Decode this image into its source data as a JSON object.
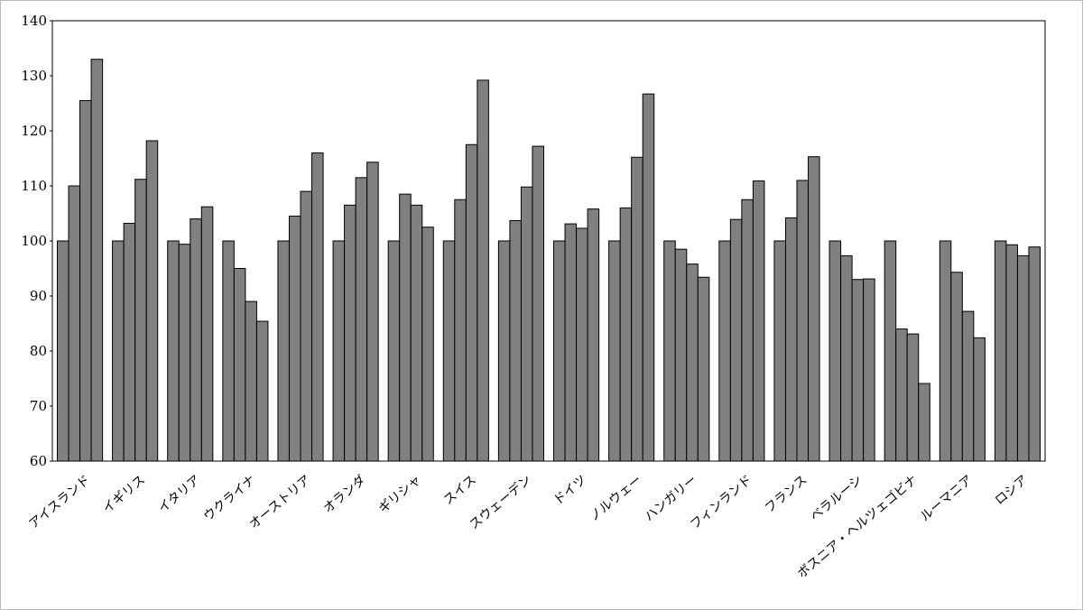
{
  "chart_data": {
    "type": "bar",
    "categories": [
      "アイスランド",
      "イギリス",
      "イタリア",
      "ウクライナ",
      "オーストリア",
      "オランダ",
      "ギリシャ",
      "スイス",
      "スウェーデン",
      "ドイツ",
      "ノルウェー",
      "ハンガリー",
      "フィンランド",
      "フランス",
      "ベラルーシ",
      "ボスニア・ヘルツェゴビナ",
      "ルーマニア",
      "ロシア"
    ],
    "series": [
      {
        "color": "#808080",
        "values": [
          100,
          100,
          100,
          100,
          100,
          100,
          100,
          100,
          100,
          100,
          100,
          100,
          100,
          100,
          100,
          100,
          100,
          100
        ]
      },
      {
        "color": "#808080",
        "values": [
          110,
          103.2,
          99.4,
          95,
          104.5,
          106.5,
          108.5,
          107.5,
          103.7,
          103.1,
          106,
          98.5,
          103.9,
          104.2,
          97.3,
          84,
          94.3,
          99.3
        ]
      },
      {
        "color": "#808080",
        "values": [
          125.5,
          111.2,
          104,
          89,
          109,
          111.5,
          106.5,
          117.5,
          109.8,
          102.3,
          115.2,
          95.8,
          107.5,
          111,
          93,
          83.1,
          87.2,
          97.3
        ]
      },
      {
        "color": "#808080",
        "values": [
          133,
          118.2,
          106.2,
          85.4,
          116,
          114.3,
          102.5,
          129.2,
          117.2,
          105.8,
          126.7,
          93.4,
          110.9,
          115.3,
          93.1,
          74.1,
          82.4,
          98.9
        ]
      }
    ],
    "ylim": [
      60,
      140
    ],
    "yticks": [
      60,
      70,
      80,
      90,
      100,
      110,
      120,
      130,
      140
    ],
    "grid": false
  }
}
